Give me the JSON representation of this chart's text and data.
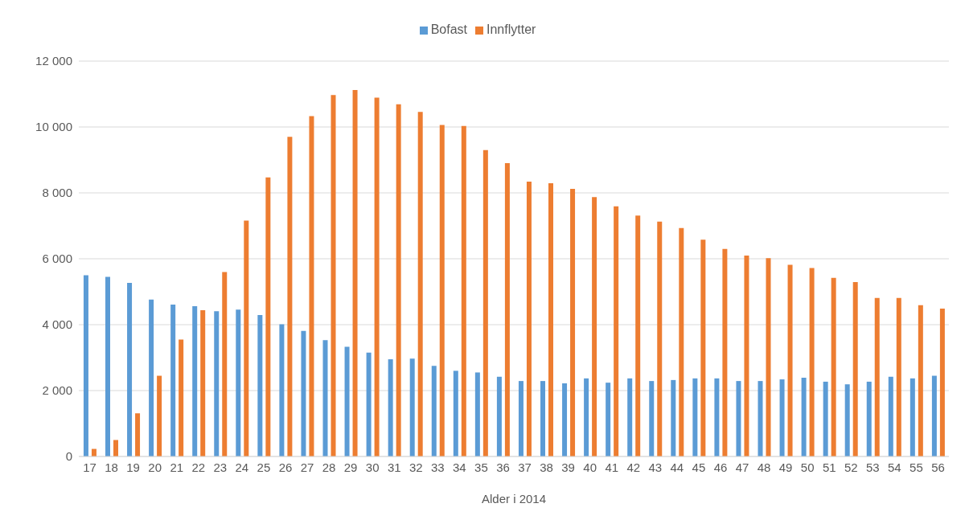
{
  "chart_data": {
    "type": "bar",
    "xlabel": "Alder i 2014",
    "categories": [
      "17",
      "18",
      "19",
      "20",
      "21",
      "22",
      "23",
      "24",
      "25",
      "26",
      "27",
      "28",
      "29",
      "30",
      "31",
      "32",
      "33",
      "34",
      "35",
      "36",
      "37",
      "38",
      "39",
      "40",
      "41",
      "42",
      "43",
      "44",
      "45",
      "46",
      "47",
      "48",
      "49",
      "50",
      "51",
      "52",
      "53",
      "54",
      "55",
      "56"
    ],
    "series": [
      {
        "name": "Bofast",
        "color": "#5b9bd5",
        "values": [
          5500,
          5450,
          5270,
          4760,
          4610,
          4560,
          4410,
          4460,
          4290,
          4010,
          3810,
          3530,
          3330,
          3150,
          2950,
          2970,
          2750,
          2600,
          2550,
          2420,
          2290,
          2290,
          2220,
          2370,
          2240,
          2370,
          2290,
          2320,
          2370,
          2370,
          2290,
          2290,
          2340,
          2390,
          2270,
          2190,
          2270,
          2420,
          2370,
          2450
        ]
      },
      {
        "name": "Innflytter",
        "color": "#ed7d31",
        "values": [
          230,
          500,
          1310,
          2450,
          3550,
          4440,
          5600,
          7160,
          8470,
          9700,
          10330,
          10970,
          11120,
          10890,
          10690,
          10460,
          10060,
          10030,
          9300,
          8900,
          8340,
          8290,
          8120,
          7870,
          7590,
          7310,
          7130,
          6930,
          6580,
          6300,
          6100,
          6020,
          5820,
          5720,
          5420,
          5290,
          4810,
          4810,
          4590,
          4490
        ]
      }
    ],
    "ylim": [
      0,
      12000
    ],
    "yticks": [
      0,
      {
        "value": 2000,
        "label": "2 000"
      },
      {
        "value": 4000,
        "label": "4 000"
      },
      {
        "value": 6000,
        "label": "6 000"
      },
      {
        "value": 8000,
        "label": "8 000"
      },
      {
        "value": 10000,
        "label": "10 000"
      },
      {
        "value": 12000,
        "label": "12 000"
      }
    ],
    "grid": "y",
    "legend": "top"
  }
}
